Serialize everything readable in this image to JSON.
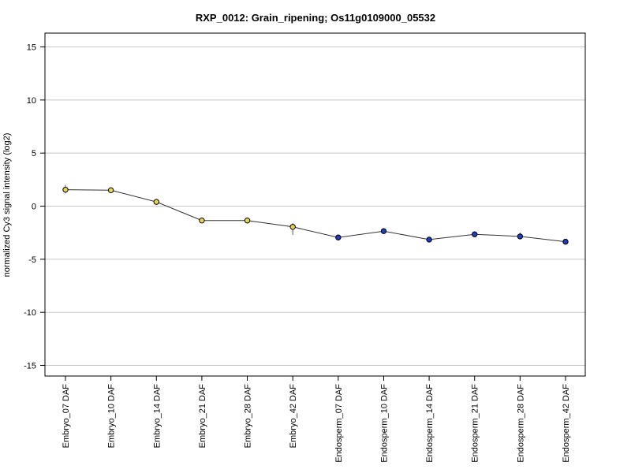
{
  "chart_data": {
    "type": "line",
    "title": "RXP_0012: Grain_ripening; Os11g0109000_05532",
    "xlabel": "",
    "ylabel": "normalized Cy3 signal intensity (log2)",
    "ylim": [
      -16,
      16.3
    ],
    "yticks": [
      -15,
      -10,
      -5,
      0,
      5,
      10,
      15
    ],
    "grid": true,
    "categories": [
      "Embryo_07 DAF",
      "Embryo_10 DAF",
      "Embryo_14 DAF",
      "Embryo_21 DAF",
      "Embryo_28 DAF",
      "Embryo_42 DAF",
      "Endosperm_07 DAF",
      "Endosperm_10 DAF",
      "Endosperm_14 DAF",
      "Endosperm_21 DAF",
      "Endosperm_28 DAF",
      "Endosperm_42 DAF"
    ],
    "values": [
      1.55,
      1.5,
      0.4,
      -1.35,
      -1.35,
      -1.95,
      -2.95,
      -2.35,
      -3.15,
      -2.65,
      -2.85,
      -3.35
    ],
    "error": [
      [
        1.2,
        2.0
      ],
      [
        1.35,
        1.7
      ],
      [
        0.2,
        0.55
      ],
      [
        -1.5,
        -1.2
      ],
      [
        -1.5,
        -1.2
      ],
      [
        -2.7,
        -1.6
      ],
      [
        -3.1,
        -2.8
      ],
      [
        -2.5,
        -2.2
      ],
      [
        -3.3,
        -3.0
      ],
      [
        -2.8,
        -2.5
      ],
      [
        -3.1,
        -2.5
      ],
      [
        -3.55,
        -3.15
      ]
    ],
    "point_colors": [
      "#e6d84a",
      "#e6d84a",
      "#e6d84a",
      "#e6d84a",
      "#e6d84a",
      "#e6d84a",
      "#1f3fbf",
      "#1f3fbf",
      "#1f3fbf",
      "#1f3fbf",
      "#1f3fbf",
      "#1f3fbf"
    ]
  }
}
